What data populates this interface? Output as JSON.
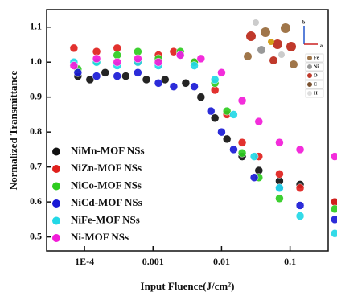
{
  "chart_data": {
    "type": "scatter",
    "xlabel": "Input Fluence(J/cm²)",
    "ylabel": "Normalized Transmittance",
    "xscale": "log",
    "xlim": [
      2.8e-05,
      0.36
    ],
    "ylim": [
      0.46,
      1.15
    ],
    "xticks": [
      {
        "value": 0.0001,
        "label": "1E-4"
      },
      0.001,
      0.01,
      0.1
    ],
    "yticks": [
      0.5,
      0.6,
      0.7,
      0.8,
      0.9,
      {
        "value": 1,
        "label": "1.0"
      },
      1.1
    ],
    "legend": "lower left",
    "series": [
      {
        "name": "NiMn-MOF NSs",
        "color": "#111111",
        "x": [
          8e-05,
          0.00012,
          0.0002,
          0.0004,
          0.0008,
          0.0015,
          0.003,
          0.005,
          0.008,
          0.012,
          0.02,
          0.035,
          0.07,
          0.14,
          0.45
        ],
        "values": [
          0.96,
          0.95,
          0.97,
          0.96,
          0.95,
          0.95,
          0.94,
          0.9,
          0.84,
          0.78,
          0.73,
          0.69,
          0.66,
          0.65,
          0.6
        ]
      },
      {
        "name": "NiZn-MOF NSs",
        "color": "#e0201c",
        "x": [
          7e-05,
          0.00015,
          0.0003,
          0.0006,
          0.0012,
          0.002,
          0.004,
          0.008,
          0.012,
          0.02,
          0.035,
          0.07,
          0.14,
          0.45
        ],
        "values": [
          1.04,
          1.03,
          1.04,
          1.0,
          1.02,
          1.03,
          1.0,
          0.92,
          0.85,
          0.77,
          0.73,
          0.68,
          0.64,
          0.6
        ]
      },
      {
        "name": "NiCo-MOF NSs",
        "color": "#2ecc1f",
        "x": [
          8e-05,
          0.00015,
          0.0003,
          0.0006,
          0.0012,
          0.0025,
          0.004,
          0.008,
          0.012,
          0.02,
          0.035,
          0.07,
          0.45
        ],
        "values": [
          0.98,
          1.0,
          1.02,
          1.03,
          1.01,
          1.03,
          1.0,
          0.94,
          0.86,
          0.74,
          0.67,
          0.61,
          0.58
        ]
      },
      {
        "name": "NiCd-MOF NSs",
        "color": "#1a1ad6",
        "x": [
          8e-05,
          0.00015,
          0.0003,
          0.0006,
          0.0012,
          0.002,
          0.004,
          0.007,
          0.01,
          0.015,
          0.03,
          0.07,
          0.14,
          0.45
        ],
        "values": [
          0.97,
          0.96,
          0.96,
          0.97,
          0.94,
          0.93,
          0.93,
          0.86,
          0.8,
          0.75,
          0.67,
          0.64,
          0.59,
          0.55
        ]
      },
      {
        "name": "NiFe-MOF NSs",
        "color": "#22d8e6",
        "x": [
          7e-05,
          0.00015,
          0.0003,
          0.0006,
          0.0012,
          0.0025,
          0.004,
          0.008,
          0.015,
          0.03,
          0.07,
          0.14,
          0.45
        ],
        "values": [
          1.0,
          1.0,
          0.99,
          1.0,
          0.99,
          1.02,
          0.99,
          0.95,
          0.85,
          0.73,
          0.64,
          0.56,
          0.51
        ]
      },
      {
        "name": "Ni-MOF NSs",
        "color": "#f21bd8",
        "x": [
          7e-05,
          0.00015,
          0.0003,
          0.0006,
          0.0012,
          0.0025,
          0.005,
          0.01,
          0.02,
          0.035,
          0.07,
          0.14,
          0.45
        ],
        "values": [
          0.99,
          1.01,
          1.0,
          1.01,
          1.0,
          1.02,
          1.01,
          0.97,
          0.89,
          0.83,
          0.77,
          0.75,
          0.73
        ]
      }
    ],
    "inset_axes": [
      "b",
      "a"
    ],
    "inset_legend": [
      "Fe",
      "Ni",
      "O",
      "C",
      "H"
    ]
  }
}
